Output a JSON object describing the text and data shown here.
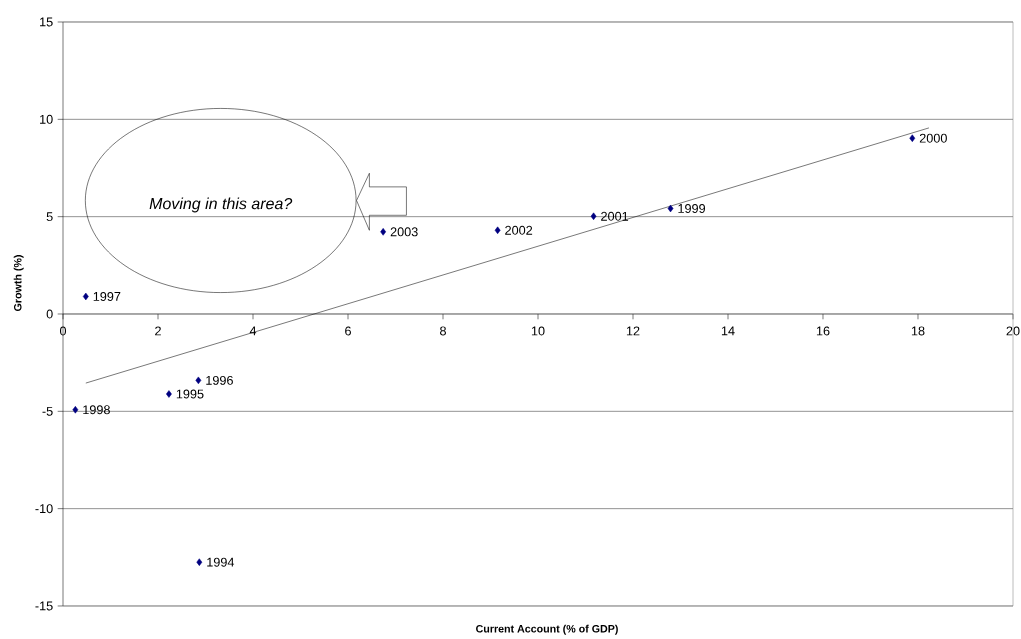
{
  "chart_data": {
    "type": "scatter",
    "xlabel": "Current Account (% of GDP)",
    "ylabel": "Growth (%)",
    "xlim": [
      0,
      20
    ],
    "ylim": [
      -15,
      15
    ],
    "xticks": [
      0,
      2,
      4,
      6,
      8,
      10,
      12,
      14,
      16,
      18,
      20
    ],
    "yticks": [
      -15,
      -10,
      -5,
      0,
      5,
      10,
      15
    ],
    "grid": "y",
    "marker": "diamond",
    "series": [
      {
        "color": "#000080",
        "x": [
          2.87,
          2.23,
          2.85,
          0.48,
          0.26,
          12.79,
          17.88,
          11.17,
          9.15,
          6.74
        ],
        "values": [
          -12.75,
          -4.11,
          -3.41,
          0.9,
          -4.92,
          5.42,
          9.03,
          5.02,
          4.3,
          4.22
        ]
      },
      {
        "type": "line",
        "marker": "none",
        "color": "#000000",
        "x": [
          0.48,
          18.23
        ],
        "values": [
          -3.55,
          9.56
        ]
      }
    ],
    "annotations": [
      {
        "text": "1994",
        "x": 2.87,
        "y": -12.75
      },
      {
        "text": "1995",
        "x": 2.23,
        "y": -4.11
      },
      {
        "text": "1996",
        "x": 2.85,
        "y": -3.41
      },
      {
        "text": "1997",
        "x": 0.48,
        "y": 0.9
      },
      {
        "text": "1998",
        "x": 0.26,
        "y": -4.92
      },
      {
        "text": "1999",
        "x": 12.79,
        "y": 5.42
      },
      {
        "text": "2000",
        "x": 17.88,
        "y": 9.03
      },
      {
        "text": "2001",
        "x": 11.17,
        "y": 5.02
      },
      {
        "text": "2002",
        "x": 9.15,
        "y": 4.3
      },
      {
        "text": "2003",
        "x": 6.74,
        "y": 4.22
      },
      "Moving in this area?"
    ]
  }
}
